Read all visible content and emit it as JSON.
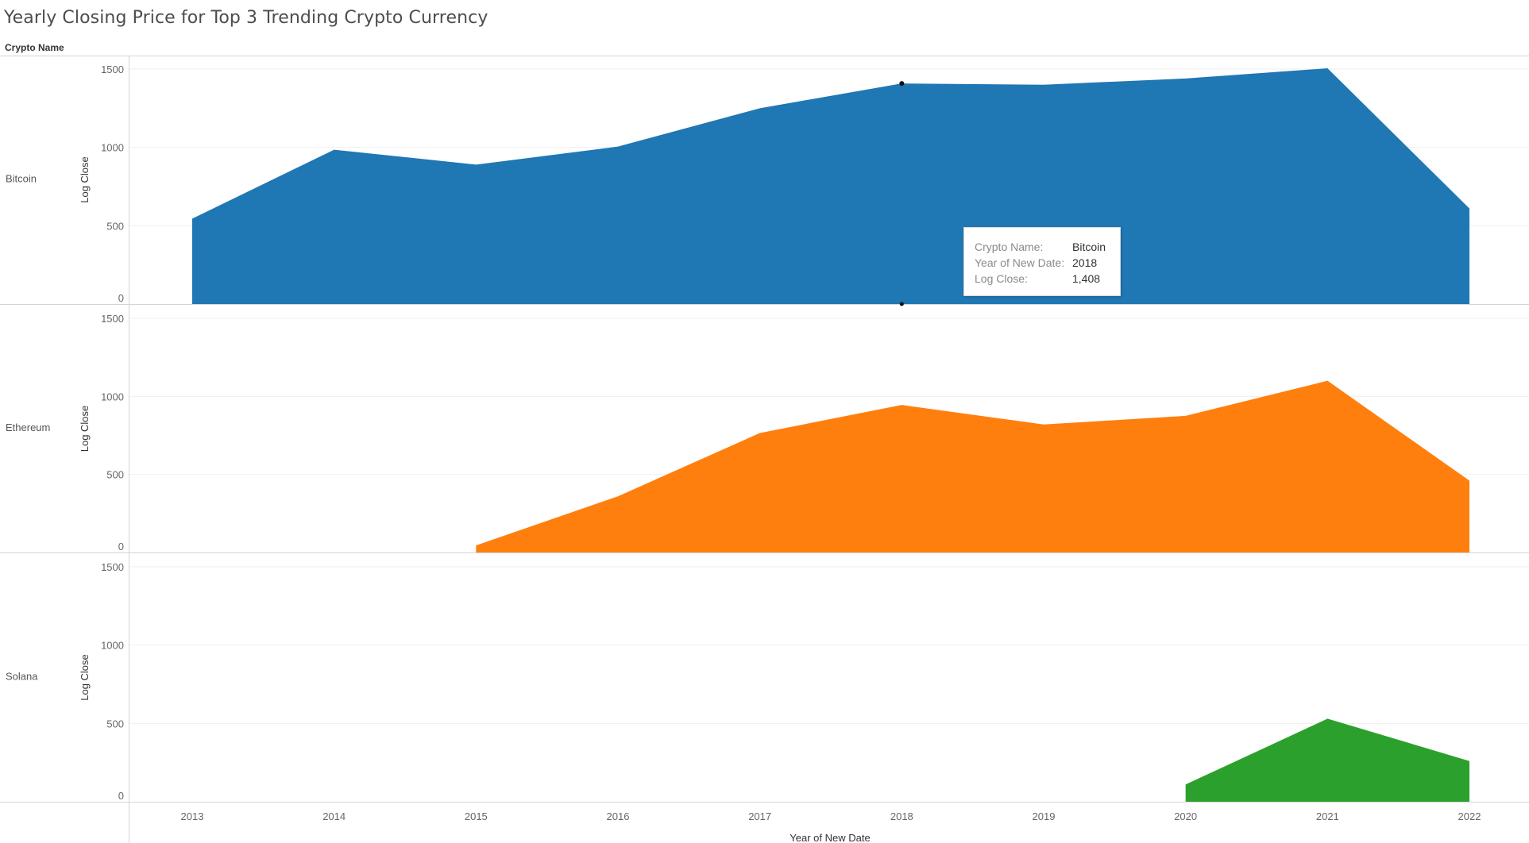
{
  "title": "Yearly Closing Price for Top 3 Trending Crypto Currency",
  "header_label": "Crypto Name",
  "x_axis_title": "Year of New Date",
  "colors": {
    "Bitcoin": "#1f77b4",
    "Ethereum": "#ff7f0e",
    "Solana": "#2ca02c"
  },
  "tooltip": {
    "rows": [
      {
        "key": "Crypto Name:",
        "value": "Bitcoin"
      },
      {
        "key": "Year of New Date:",
        "value": "2018"
      },
      {
        "key": "Log Close:",
        "value": "1,408"
      }
    ]
  },
  "chart_data": {
    "type": "area",
    "title": "Yearly Closing Price for Top 3 Trending Crypto Currency",
    "xlabel": "Year of New Date",
    "ylabel": "Log Close",
    "x": [
      2013,
      2014,
      2015,
      2016,
      2017,
      2018,
      2019,
      2020,
      2021,
      2022
    ],
    "ylim": [
      0,
      1500
    ],
    "y_ticks": [
      0,
      500,
      1000,
      1500
    ],
    "y_tick_labels": [
      "0",
      "500",
      "1000",
      "1500"
    ],
    "grid": true,
    "series": [
      {
        "name": "Bitcoin",
        "x": [
          2013,
          2014,
          2015,
          2016,
          2017,
          2018,
          2019,
          2020,
          2021,
          2022
        ],
        "values": [
          545,
          985,
          890,
          1005,
          1250,
          1408,
          1400,
          1440,
          1505,
          610
        ]
      },
      {
        "name": "Ethereum",
        "x": [
          2015,
          2016,
          2017,
          2018,
          2019,
          2020,
          2021,
          2022
        ],
        "values": [
          45,
          360,
          765,
          945,
          820,
          875,
          1100,
          460
        ]
      },
      {
        "name": "Solana",
        "x": [
          2020,
          2021,
          2022
        ],
        "values": [
          110,
          530,
          260
        ]
      }
    ]
  }
}
